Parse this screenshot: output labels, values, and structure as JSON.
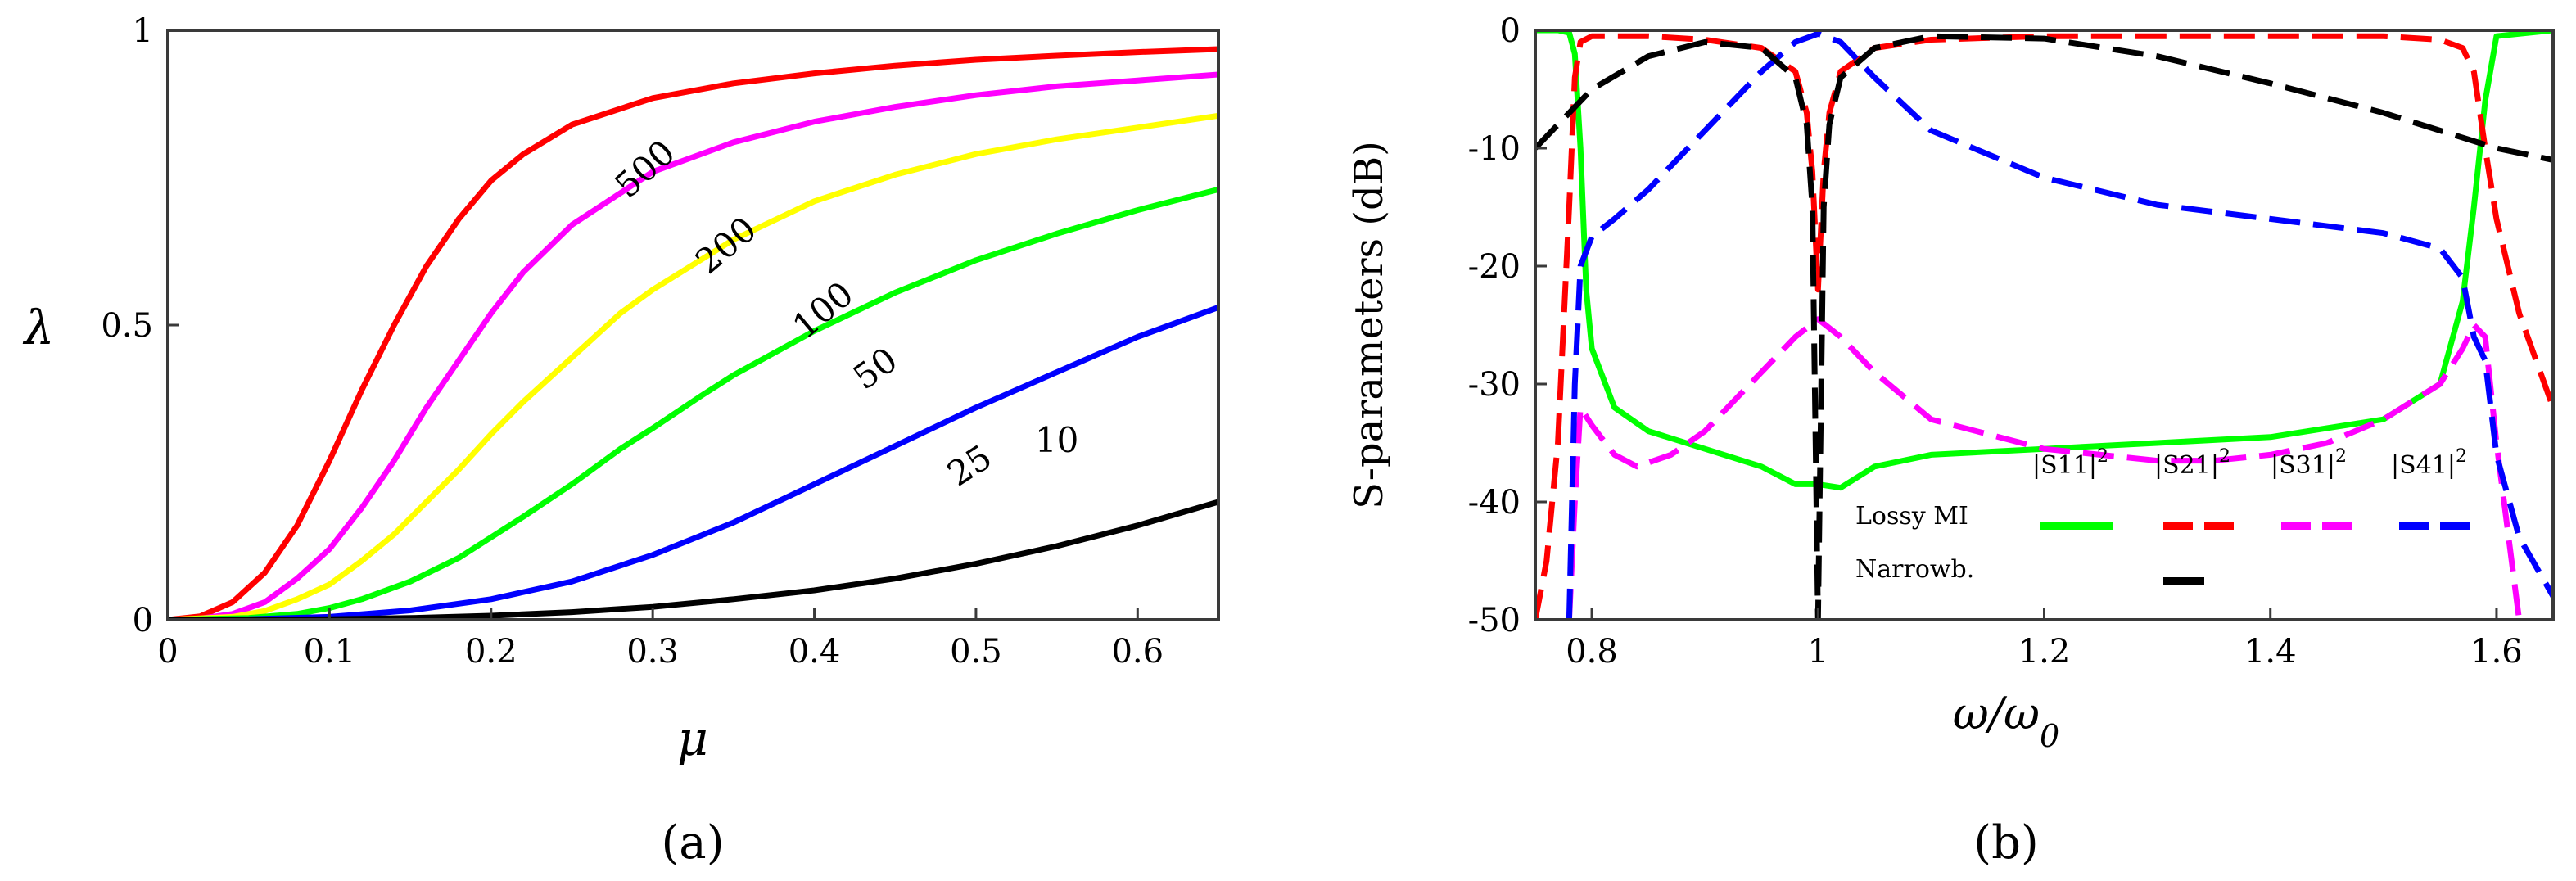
{
  "chart_data": [
    {
      "type": "line",
      "panel_label": "(a)",
      "title": "",
      "xlabel": "μ",
      "ylabel": "λ",
      "xlim": [
        0,
        0.65
      ],
      "ylim": [
        0,
        1
      ],
      "xticks": [
        "0",
        "0.1",
        "0.2",
        "0.3",
        "0.4",
        "0.5",
        "0.6"
      ],
      "yticks": [
        "0",
        "0.5",
        "1"
      ],
      "series": [
        {
          "name": "500",
          "color": "#ff0000",
          "x": [
            0,
            0.02,
            0.04,
            0.06,
            0.08,
            0.1,
            0.12,
            0.14,
            0.16,
            0.18,
            0.2,
            0.22,
            0.25,
            0.3,
            0.35,
            0.4,
            0.45,
            0.5,
            0.55,
            0.6,
            0.65
          ],
          "y": [
            0,
            0.006,
            0.03,
            0.08,
            0.16,
            0.27,
            0.39,
            0.5,
            0.6,
            0.68,
            0.745,
            0.79,
            0.84,
            0.885,
            0.91,
            0.927,
            0.94,
            0.95,
            0.957,
            0.963,
            0.968
          ]
        },
        {
          "name": "200",
          "color": "#ff00ff",
          "x": [
            0,
            0.02,
            0.04,
            0.06,
            0.08,
            0.1,
            0.12,
            0.14,
            0.16,
            0.18,
            0.2,
            0.22,
            0.25,
            0.3,
            0.35,
            0.4,
            0.45,
            0.5,
            0.55,
            0.6,
            0.65
          ],
          "y": [
            0,
            0.002,
            0.01,
            0.03,
            0.07,
            0.12,
            0.19,
            0.27,
            0.36,
            0.44,
            0.52,
            0.59,
            0.67,
            0.76,
            0.81,
            0.845,
            0.87,
            0.89,
            0.905,
            0.915,
            0.925
          ]
        },
        {
          "name": "100",
          "color": "#ffff00",
          "x": [
            0,
            0.04,
            0.06,
            0.08,
            0.1,
            0.12,
            0.14,
            0.16,
            0.18,
            0.2,
            0.22,
            0.25,
            0.28,
            0.3,
            0.35,
            0.4,
            0.45,
            0.5,
            0.55,
            0.6,
            0.65
          ],
          "y": [
            0,
            0.005,
            0.015,
            0.035,
            0.06,
            0.1,
            0.145,
            0.2,
            0.255,
            0.315,
            0.37,
            0.445,
            0.52,
            0.56,
            0.645,
            0.71,
            0.755,
            0.79,
            0.815,
            0.835,
            0.855
          ]
        },
        {
          "name": "50",
          "color": "#00ff00",
          "x": [
            0,
            0.05,
            0.08,
            0.1,
            0.12,
            0.15,
            0.18,
            0.2,
            0.22,
            0.25,
            0.28,
            0.3,
            0.33,
            0.35,
            0.4,
            0.45,
            0.5,
            0.55,
            0.6,
            0.65
          ],
          "y": [
            0,
            0.003,
            0.01,
            0.02,
            0.035,
            0.065,
            0.105,
            0.14,
            0.175,
            0.23,
            0.29,
            0.325,
            0.38,
            0.415,
            0.49,
            0.555,
            0.61,
            0.655,
            0.695,
            0.73
          ]
        },
        {
          "name": "25",
          "color": "#0000ff",
          "x": [
            0,
            0.05,
            0.1,
            0.15,
            0.2,
            0.25,
            0.3,
            0.35,
            0.4,
            0.45,
            0.5,
            0.55,
            0.6,
            0.65
          ],
          "y": [
            0,
            0.001,
            0.005,
            0.016,
            0.035,
            0.065,
            0.11,
            0.165,
            0.23,
            0.295,
            0.36,
            0.42,
            0.48,
            0.53
          ]
        },
        {
          "name": "10",
          "color": "#000000",
          "x": [
            0,
            0.1,
            0.15,
            0.2,
            0.25,
            0.3,
            0.35,
            0.4,
            0.45,
            0.5,
            0.55,
            0.6,
            0.65
          ],
          "y": [
            0,
            0.001,
            0.003,
            0.007,
            0.013,
            0.022,
            0.035,
            0.05,
            0.07,
            0.095,
            0.125,
            0.16,
            0.2
          ]
        }
      ],
      "curve_labels": [
        {
          "text": "500",
          "x": 0.3,
          "y": 0.75,
          "angle": -42
        },
        {
          "text": "200",
          "x": 0.35,
          "y": 0.62,
          "angle": -40
        },
        {
          "text": "100",
          "x": 0.41,
          "y": 0.51,
          "angle": -40
        },
        {
          "text": "50",
          "x": 0.442,
          "y": 0.41,
          "angle": -36
        },
        {
          "text": "25",
          "x": 0.5,
          "y": 0.245,
          "angle": -33
        },
        {
          "text": "10",
          "x": 0.55,
          "y": 0.285,
          "angle": 0
        }
      ]
    },
    {
      "type": "line",
      "panel_label": "(b)",
      "title": "",
      "xlabel": "ω/ω",
      "xlabel_sub": "0",
      "ylabel": "S-parameters (dB)",
      "xlim": [
        0.75,
        1.65
      ],
      "ylim": [
        -50,
        0
      ],
      "xticks": [
        "0.8",
        "1",
        "1.2",
        "1.4",
        "1.6"
      ],
      "yticks": [
        "0",
        "-10",
        "-20",
        "-30",
        "-40",
        "-50"
      ],
      "series": [
        {
          "name": "|S11|²",
          "group": "Lossy MI",
          "color": "#00ff00",
          "dash": false,
          "x": [
            0.75,
            0.77,
            0.78,
            0.785,
            0.79,
            0.795,
            0.8,
            0.82,
            0.85,
            0.9,
            0.95,
            0.98,
            1.0,
            1.02,
            1.05,
            1.1,
            1.2,
            1.3,
            1.4,
            1.5,
            1.55,
            1.57,
            1.58,
            1.59,
            1.6,
            1.65
          ],
          "y": [
            0,
            0,
            -0.2,
            -2,
            -10,
            -22,
            -27,
            -32,
            -34,
            -35.5,
            -37,
            -38.5,
            -38.5,
            -38.8,
            -37,
            -36,
            -35.5,
            -35,
            -34.5,
            -33,
            -30,
            -23,
            -15,
            -6,
            -0.5,
            0
          ]
        },
        {
          "name": "|S21|²",
          "group": "Lossy MI",
          "color": "#ff0000",
          "dash": true,
          "x": [
            0.75,
            0.76,
            0.77,
            0.78,
            0.785,
            0.79,
            0.8,
            0.85,
            0.9,
            0.95,
            0.98,
            0.99,
            0.995,
            1.0,
            1.005,
            1.01,
            1.02,
            1.05,
            1.1,
            1.2,
            1.3,
            1.4,
            1.5,
            1.55,
            1.57,
            1.58,
            1.59,
            1.6,
            1.62,
            1.65
          ],
          "y": [
            -50,
            -45,
            -35,
            -15,
            -4,
            -1,
            -0.5,
            -0.5,
            -0.8,
            -1.5,
            -3.5,
            -7,
            -12,
            -22,
            -12,
            -7,
            -3.5,
            -1.5,
            -0.8,
            -0.5,
            -0.5,
            -0.5,
            -0.5,
            -0.8,
            -1.5,
            -3.5,
            -10,
            -16,
            -24,
            -32
          ]
        },
        {
          "name": "|S31|²",
          "group": "Lossy MI",
          "color": "#ff00ff",
          "dash": true,
          "x": [
            0.78,
            0.785,
            0.79,
            0.8,
            0.82,
            0.84,
            0.87,
            0.9,
            0.95,
            0.98,
            1.0,
            1.02,
            1.05,
            1.1,
            1.2,
            1.3,
            1.35,
            1.4,
            1.45,
            1.5,
            1.55,
            1.57,
            1.58,
            1.59,
            1.6,
            1.62
          ],
          "y": [
            -50,
            -40,
            -32,
            -33.5,
            -36,
            -37,
            -36,
            -34,
            -29,
            -26,
            -24.5,
            -26,
            -29,
            -33,
            -35.5,
            -36.5,
            -36.5,
            -36,
            -35,
            -33,
            -30,
            -27,
            -25,
            -26,
            -35,
            -50
          ]
        },
        {
          "name": "|S41|²",
          "group": "Lossy MI",
          "color": "#0000ff",
          "dash": true,
          "x": [
            0.78,
            0.785,
            0.79,
            0.8,
            0.82,
            0.85,
            0.9,
            0.95,
            0.98,
            1.0,
            1.02,
            1.05,
            1.1,
            1.2,
            1.3,
            1.4,
            1.5,
            1.55,
            1.57,
            1.58,
            1.59,
            1.6,
            1.62,
            1.65
          ],
          "y": [
            -50,
            -30,
            -20,
            -17.5,
            -16,
            -13.5,
            -8.5,
            -3.5,
            -1,
            -0.3,
            -1,
            -4,
            -8.5,
            -12.5,
            -14.8,
            -16,
            -17.2,
            -18.5,
            -21,
            -26,
            -28,
            -36,
            -43,
            -48
          ]
        },
        {
          "name": "Narrowb.",
          "group": "Narrowb.",
          "color": "#000000",
          "dash": true,
          "x": [
            0.75,
            0.8,
            0.85,
            0.9,
            0.95,
            0.98,
            0.99,
            0.995,
            1.0,
            1.005,
            1.01,
            1.02,
            1.05,
            1.1,
            1.2,
            1.3,
            1.4,
            1.5,
            1.6,
            1.65
          ],
          "y": [
            -10,
            -5,
            -2.2,
            -1,
            -1.5,
            -4,
            -8,
            -15,
            -50,
            -15,
            -8,
            -4,
            -1.5,
            -0.5,
            -0.7,
            -2.2,
            -4.5,
            -7,
            -10,
            -11
          ]
        }
      ],
      "legend": {
        "headers": [
          "|S11|",
          "|S21|",
          "|S31|",
          "|S41|"
        ],
        "superscript": "2",
        "rows": [
          "Lossy MI",
          "Narrowb."
        ]
      }
    }
  ]
}
